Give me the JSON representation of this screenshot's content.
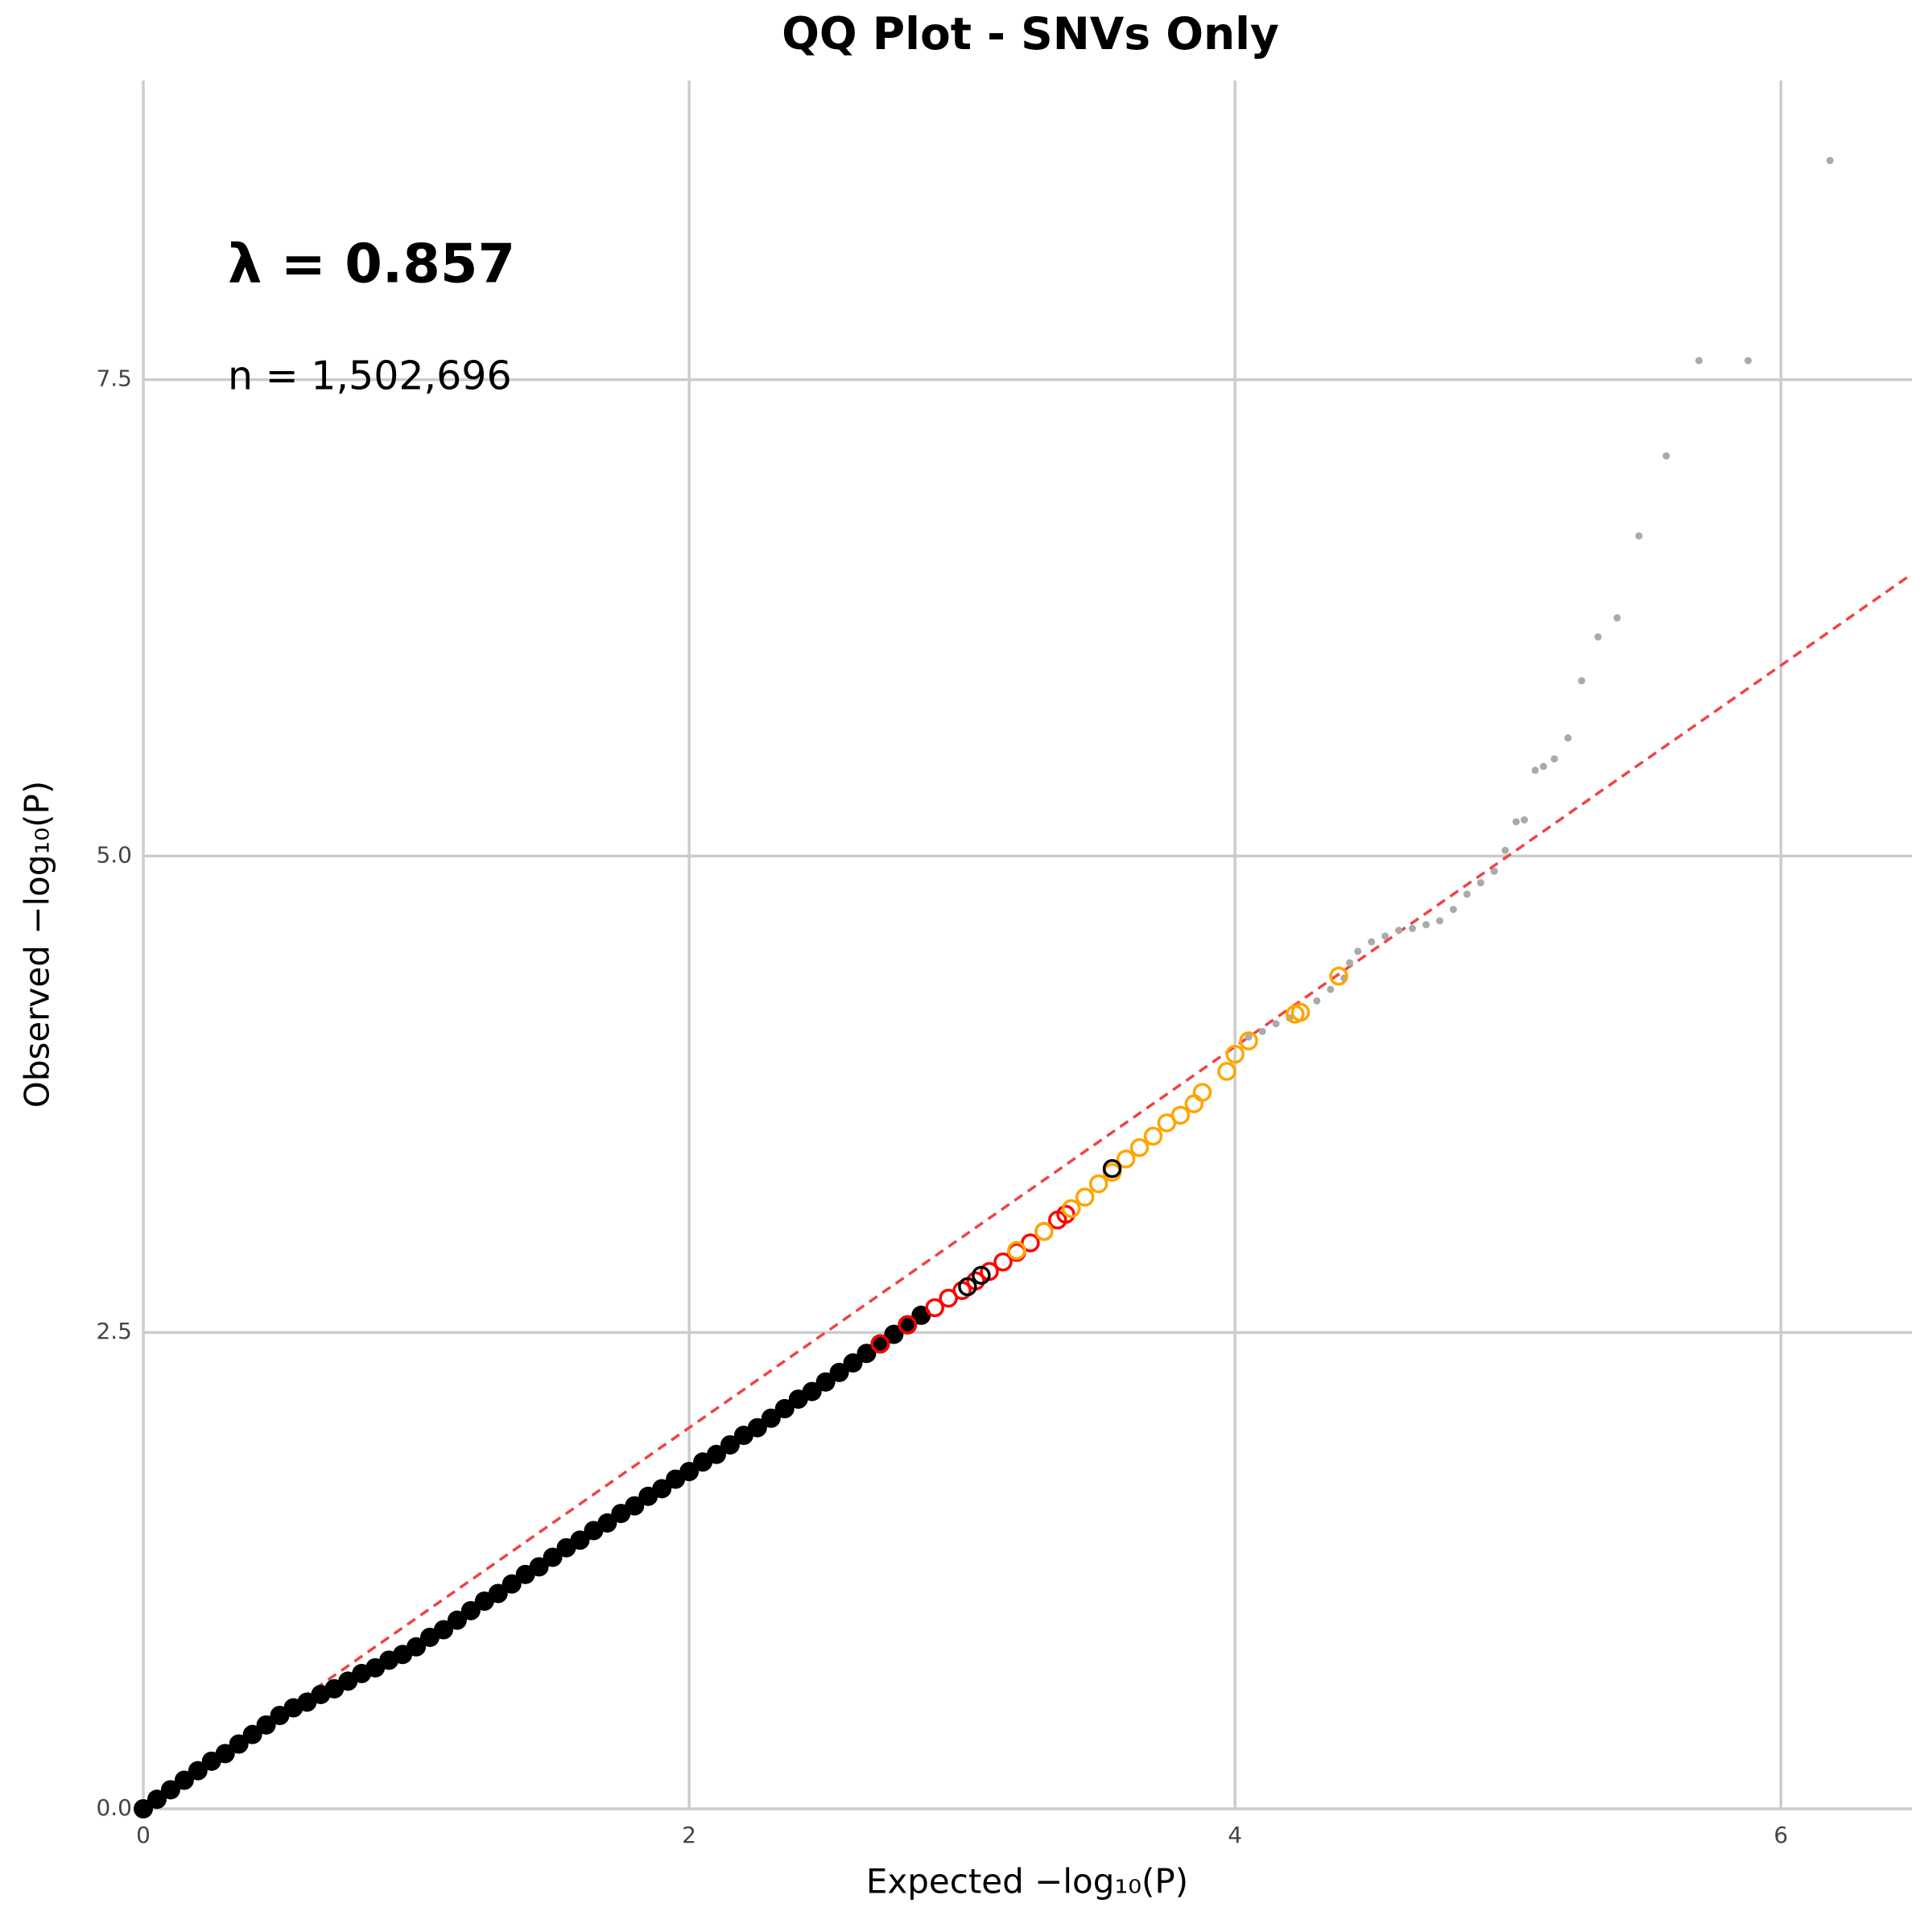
{
  "chart_data": {
    "type": "scatter",
    "title": "QQ Plot - SNVs Only",
    "x_label": "Expected −log₁₀(P)",
    "y_label": "Observed −log₁₀(P)",
    "annotations": [
      "λ = 0.857",
      "n = 1,502,696"
    ],
    "xlim": [
      0,
      6.48
    ],
    "ylim": [
      0,
      9.07
    ],
    "xticks": [
      0,
      2,
      4,
      6
    ],
    "yticks": [
      {
        "value": 0,
        "label": "0.0"
      },
      {
        "value": 2.5,
        "label": "2.5"
      },
      {
        "value": 5,
        "label": "5.0"
      },
      {
        "value": 7.5,
        "label": "7.5"
      }
    ],
    "grid": true,
    "reference_line_color": "#ee4444",
    "series": [
      {
        "color": "#aaaaaa",
        "marker": "dot",
        "x": [
          4.05,
          4.1,
          4.15,
          4.2,
          4.3,
          4.35,
          4.4,
          4.42,
          4.45,
          4.5,
          4.55,
          4.6,
          4.65,
          4.7,
          4.75,
          4.8,
          4.85,
          4.9,
          4.95,
          4.99,
          5.03,
          5.06,
          5.1,
          5.13,
          5.17,
          5.22,
          5.27,
          5.33,
          5.4,
          5.48,
          5.58,
          5.7,
          5.88,
          6.18
        ],
        "y": [
          4.05,
          4.08,
          4.12,
          4.15,
          4.24,
          4.3,
          4.36,
          4.44,
          4.5,
          4.55,
          4.58,
          4.61,
          4.62,
          4.64,
          4.66,
          4.72,
          4.8,
          4.86,
          4.92,
          5.03,
          5.18,
          5.19,
          5.45,
          5.47,
          5.51,
          5.62,
          5.92,
          6.15,
          6.25,
          6.68,
          7.1,
          7.6,
          7.6,
          8.65
        ]
      },
      {
        "color": "#000000",
        "marker": "filled",
        "x": [
          0,
          0.05,
          0.1,
          0.15,
          0.2,
          0.25,
          0.3,
          0.35,
          0.4,
          0.45,
          0.5,
          0.55,
          0.6,
          0.65,
          0.7,
          0.75,
          0.8,
          0.85,
          0.9,
          0.95,
          1.0,
          1.05,
          1.1,
          1.15,
          1.2,
          1.25,
          1.3,
          1.35,
          1.4,
          1.45,
          1.5,
          1.55,
          1.6,
          1.65,
          1.7,
          1.75,
          1.8,
          1.85,
          1.9,
          1.95,
          2.0,
          2.05,
          2.1,
          2.15,
          2.2,
          2.25,
          2.3,
          2.35,
          2.4,
          2.45,
          2.5,
          2.55,
          2.6,
          2.65,
          2.7,
          2.75,
          2.8,
          2.85
        ],
        "y": [
          0,
          0.05,
          0.1,
          0.15,
          0.2,
          0.25,
          0.29,
          0.34,
          0.39,
          0.44,
          0.49,
          0.53,
          0.56,
          0.6,
          0.63,
          0.67,
          0.71,
          0.74,
          0.78,
          0.81,
          0.85,
          0.9,
          0.94,
          0.99,
          1.04,
          1.09,
          1.13,
          1.18,
          1.23,
          1.27,
          1.32,
          1.37,
          1.41,
          1.46,
          1.5,
          1.55,
          1.59,
          1.64,
          1.68,
          1.73,
          1.77,
          1.82,
          1.86,
          1.91,
          1.96,
          2.0,
          2.05,
          2.1,
          2.15,
          2.19,
          2.24,
          2.29,
          2.34,
          2.39,
          2.44,
          2.49,
          2.54,
          2.59
        ]
      },
      {
        "color": "#ff0000",
        "marker": "open",
        "x": [
          2.7,
          2.8,
          2.9,
          2.95,
          3.0,
          3.05,
          3.1,
          3.15,
          3.2,
          3.25,
          3.3,
          3.35,
          3.38
        ],
        "y": [
          2.44,
          2.54,
          2.63,
          2.68,
          2.72,
          2.77,
          2.82,
          2.87,
          2.92,
          2.97,
          3.03,
          3.09,
          3.12
        ]
      },
      {
        "color": "#ffa500",
        "marker": "open",
        "x": [
          3.2,
          3.3,
          3.4,
          3.45,
          3.5,
          3.55,
          3.6,
          3.65,
          3.7,
          3.75,
          3.8,
          3.85,
          3.88,
          3.97,
          4.0,
          4.05,
          4.22,
          4.24,
          4.38
        ],
        "y": [
          2.93,
          3.03,
          3.15,
          3.21,
          3.28,
          3.34,
          3.41,
          3.47,
          3.53,
          3.6,
          3.64,
          3.7,
          3.76,
          3.87,
          3.96,
          4.03,
          4.17,
          4.18,
          4.37
        ]
      },
      {
        "color": "#000000",
        "marker": "open",
        "x": [
          3.02,
          3.07,
          3.55
        ],
        "y": [
          2.74,
          2.8,
          3.36
        ]
      }
    ]
  }
}
